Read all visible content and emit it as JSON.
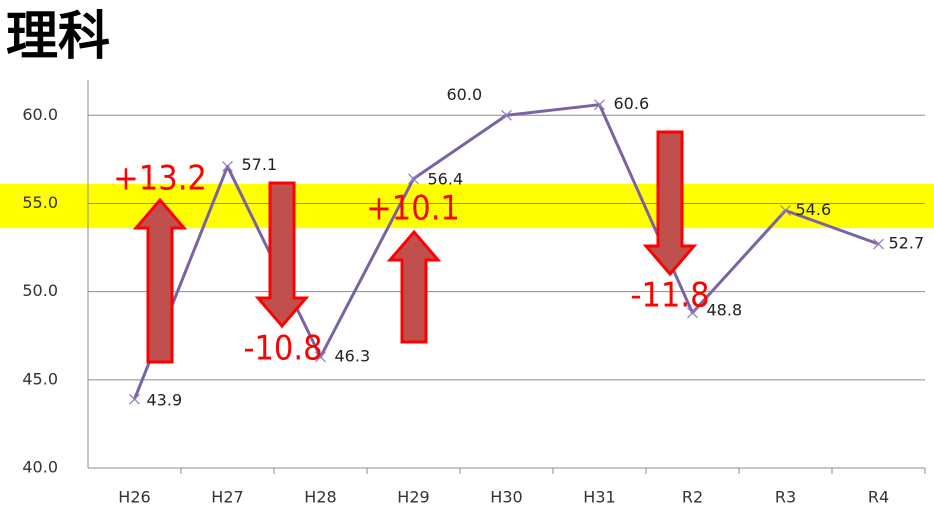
{
  "chart_data": {
    "type": "line",
    "title": "理科",
    "categories": [
      "H26",
      "H27",
      "H28",
      "H29",
      "H30",
      "H31",
      "R2",
      "R3",
      "R4"
    ],
    "values": [
      43.9,
      57.1,
      46.3,
      56.4,
      60.0,
      60.6,
      48.8,
      54.6,
      52.7
    ],
    "value_labels": [
      "43.9",
      "57.1",
      "46.3",
      "56.4",
      "60.0",
      "60.6",
      "48.8",
      "54.6",
      "52.7"
    ],
    "color": "#7b63a3",
    "ylim": [
      40,
      62
    ],
    "yticks": [
      {
        "value": 40,
        "label": "40.0"
      },
      {
        "value": 45,
        "label": "45.0"
      },
      {
        "value": 50,
        "label": "50.0"
      },
      {
        "value": 55,
        "label": "55.0"
      },
      {
        "value": 60,
        "label": "60.0"
      }
    ],
    "grid": true,
    "highlight_band": {
      "range": [
        53.6,
        56.1
      ],
      "color": "#ffff00"
    },
    "annotations": [
      "+13.2",
      "-10.8",
      "+10.1",
      "-11.8"
    ],
    "annotation_color": "#ff0000",
    "arrow_color": "#c0504d"
  }
}
